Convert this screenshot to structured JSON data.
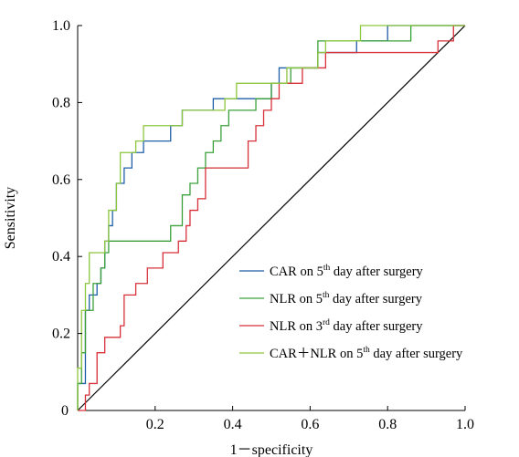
{
  "chart_data": {
    "type": "line",
    "xlabel": "1－specificity",
    "ylabel": "Sensitivity",
    "xlim": [
      0,
      1
    ],
    "ylim": [
      0,
      1
    ],
    "x_ticks": [
      "0",
      "0.2",
      "0.4",
      "0.6",
      "0.8",
      "1.0"
    ],
    "y_ticks": [
      "0",
      "0.2",
      "0.4",
      "0.6",
      "0.8",
      "1.0"
    ],
    "grid": false,
    "legend_position": "bottom-right",
    "reference_line": {
      "x": [
        0,
        1
      ],
      "y": [
        0,
        1
      ],
      "color": "#000000"
    },
    "series": [
      {
        "name": "CAR on 5th day after surgery",
        "legend": {
          "pre": "CAR on 5",
          "sup": "th",
          "post": " day after surgery"
        },
        "color": "#1f5fa8",
        "x": [
          0,
          0,
          0.02,
          0.02,
          0.03,
          0.03,
          0.05,
          0.05,
          0.06,
          0.06,
          0.07,
          0.07,
          0.08,
          0.08,
          0.09,
          0.09,
          0.1,
          0.1,
          0.12,
          0.12,
          0.14,
          0.14,
          0.17,
          0.17,
          0.24,
          0.24,
          0.27,
          0.27,
          0.35,
          0.35,
          0.5,
          0.5,
          0.52,
          0.52,
          0.56,
          0.56,
          0.62,
          0.62,
          0.64,
          0.64,
          0.72,
          0.72,
          0.8,
          0.8,
          1.0
        ],
        "y": [
          0,
          0.07,
          0.07,
          0.26,
          0.26,
          0.3,
          0.3,
          0.33,
          0.33,
          0.37,
          0.37,
          0.44,
          0.44,
          0.48,
          0.48,
          0.52,
          0.52,
          0.59,
          0.59,
          0.63,
          0.63,
          0.67,
          0.67,
          0.7,
          0.7,
          0.74,
          0.74,
          0.78,
          0.78,
          0.81,
          0.81,
          0.85,
          0.85,
          0.89,
          0.89,
          0.89,
          0.89,
          0.93,
          0.93,
          0.93,
          0.93,
          0.96,
          0.96,
          1.0,
          1.0
        ]
      },
      {
        "name": "NLR on 5th day after surgery",
        "legend": {
          "pre": "NLR on 5",
          "sup": "th",
          "post": " day after surgery"
        },
        "color": "#3aa03a",
        "x": [
          0,
          0,
          0.01,
          0.01,
          0.02,
          0.02,
          0.04,
          0.04,
          0.06,
          0.06,
          0.07,
          0.07,
          0.08,
          0.08,
          0.1,
          0.1,
          0.24,
          0.24,
          0.27,
          0.27,
          0.29,
          0.29,
          0.31,
          0.31,
          0.33,
          0.33,
          0.35,
          0.35,
          0.37,
          0.37,
          0.39,
          0.39,
          0.46,
          0.46,
          0.48,
          0.48,
          0.5,
          0.5,
          0.55,
          0.55,
          0.59,
          0.59,
          0.62,
          0.62,
          0.64,
          0.64,
          0.86,
          0.86,
          1.0
        ],
        "y": [
          0,
          0.07,
          0.07,
          0.15,
          0.15,
          0.26,
          0.26,
          0.33,
          0.33,
          0.37,
          0.37,
          0.41,
          0.41,
          0.44,
          0.44,
          0.44,
          0.44,
          0.48,
          0.48,
          0.56,
          0.56,
          0.59,
          0.59,
          0.63,
          0.63,
          0.67,
          0.67,
          0.7,
          0.7,
          0.74,
          0.74,
          0.78,
          0.78,
          0.81,
          0.81,
          0.81,
          0.81,
          0.85,
          0.85,
          0.89,
          0.89,
          0.89,
          0.89,
          0.96,
          0.96,
          0.96,
          0.96,
          1.0,
          1.0
        ]
      },
      {
        "name": "NLR on 3rd day after surgery",
        "legend": {
          "pre": "NLR on 3",
          "sup": "rd",
          "post": " day after surgery"
        },
        "color": "#d7303a",
        "x": [
          0,
          0.02,
          0.02,
          0.03,
          0.03,
          0.05,
          0.05,
          0.07,
          0.07,
          0.09,
          0.09,
          0.11,
          0.11,
          0.12,
          0.12,
          0.15,
          0.15,
          0.18,
          0.18,
          0.2,
          0.2,
          0.22,
          0.22,
          0.26,
          0.26,
          0.28,
          0.28,
          0.29,
          0.29,
          0.31,
          0.31,
          0.33,
          0.33,
          0.44,
          0.44,
          0.46,
          0.46,
          0.48,
          0.48,
          0.5,
          0.5,
          0.52,
          0.52,
          0.58,
          0.58,
          0.64,
          0.64,
          0.93,
          0.93,
          0.97,
          0.97,
          1.0
        ],
        "y": [
          0,
          0,
          0.04,
          0.04,
          0.07,
          0.07,
          0.15,
          0.15,
          0.19,
          0.19,
          0.19,
          0.19,
          0.22,
          0.22,
          0.3,
          0.3,
          0.33,
          0.33,
          0.37,
          0.37,
          0.37,
          0.37,
          0.41,
          0.41,
          0.44,
          0.44,
          0.48,
          0.48,
          0.52,
          0.52,
          0.55,
          0.55,
          0.63,
          0.63,
          0.7,
          0.7,
          0.74,
          0.74,
          0.78,
          0.78,
          0.81,
          0.81,
          0.85,
          0.85,
          0.89,
          0.89,
          0.93,
          0.93,
          0.96,
          0.96,
          1.0,
          1.0
        ]
      },
      {
        "name": "CAR＋NLR on 5th day after surgery",
        "legend": {
          "pre": "CAR＋NLR on 5",
          "sup": "th",
          "post": " day after surgery"
        },
        "color": "#8dc63f",
        "x": [
          0,
          0,
          0.01,
          0.01,
          0.02,
          0.02,
          0.03,
          0.03,
          0.07,
          0.07,
          0.08,
          0.08,
          0.1,
          0.1,
          0.11,
          0.11,
          0.15,
          0.15,
          0.16,
          0.16,
          0.17,
          0.17,
          0.18,
          0.18,
          0.27,
          0.27,
          0.29,
          0.29,
          0.35,
          0.35,
          0.38,
          0.38,
          0.41,
          0.41,
          0.48,
          0.48,
          0.54,
          0.54,
          0.62,
          0.62,
          0.64,
          0.64,
          0.66,
          0.66,
          0.73,
          0.73,
          1.0
        ],
        "y": [
          0,
          0.11,
          0.11,
          0.26,
          0.26,
          0.33,
          0.33,
          0.41,
          0.41,
          0.44,
          0.44,
          0.52,
          0.52,
          0.59,
          0.59,
          0.67,
          0.67,
          0.7,
          0.7,
          0.7,
          0.7,
          0.74,
          0.74,
          0.74,
          0.74,
          0.78,
          0.78,
          0.78,
          0.78,
          0.78,
          0.78,
          0.81,
          0.81,
          0.85,
          0.85,
          0.85,
          0.85,
          0.89,
          0.89,
          0.93,
          0.93,
          0.96,
          0.96,
          0.96,
          0.96,
          1.0,
          1.0
        ]
      }
    ]
  }
}
